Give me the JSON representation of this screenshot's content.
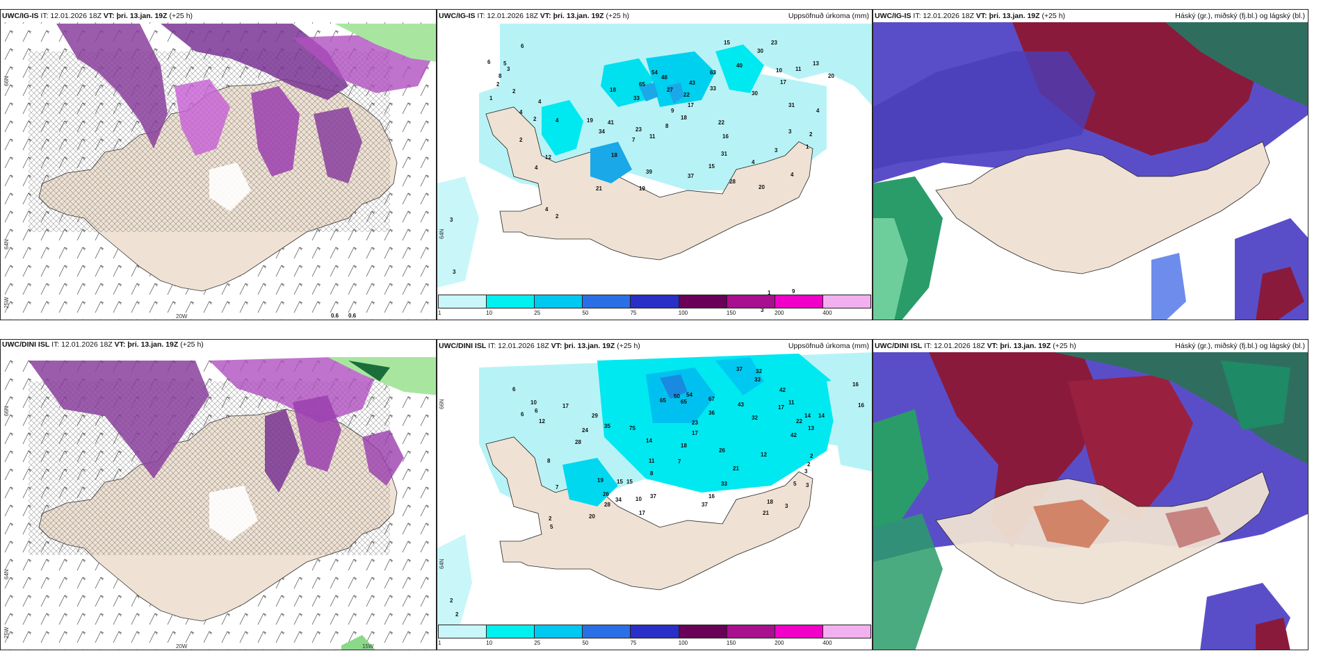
{
  "panels": {
    "p1": {
      "model": "UWC/IG-IS",
      "it": "IT: 12.01.2026 18Z",
      "vt_label": "VT:",
      "vt": "þri. 13.jan. 19Z",
      "lead": "(+25 h)",
      "title_right": "",
      "lat_labels": [
        "66N",
        "64N",
        "25W"
      ],
      "lon_labels": [
        "20W"
      ],
      "labels": [
        "0.6",
        "0.6"
      ]
    },
    "p2": {
      "model": "UWC/IG-IS",
      "it": "IT: 12.01.2026 18Z",
      "vt_label": "VT:",
      "vt": "þri. 13.jan. 19Z",
      "lead": "(+25 h)",
      "title_right": "Uppsöfnuð úrkoma (mm)",
      "edge_label": "64N",
      "values": [
        "3",
        "3",
        "2",
        "3",
        "1",
        "2",
        "6",
        "4",
        "2",
        "4",
        "2",
        "12",
        "4",
        "4",
        "2",
        "18",
        "33",
        "54",
        "48",
        "65",
        "27",
        "43",
        "63",
        "22",
        "33",
        "40",
        "30",
        "9",
        "23",
        "11",
        "17",
        "7",
        "8",
        "18",
        "41",
        "34",
        "19",
        "22",
        "16",
        "18",
        "31",
        "39",
        "37",
        "28",
        "20",
        "19",
        "21",
        "15",
        "3",
        "4",
        "3",
        "4",
        "9",
        "10",
        "11",
        "13",
        "20",
        "17",
        "31",
        "4",
        "2",
        "1",
        "6",
        "8",
        "5",
        "4",
        "3",
        "1",
        "15",
        "30",
        "23"
      ]
    },
    "p3": {
      "model": "UWC/IG-IS",
      "it": "IT: 12.01.2026 18Z",
      "vt_label": "VT:",
      "vt": "þri. 13.jan. 19Z",
      "lead": "(+25 h)",
      "title_right": "Háský (gr.), miðský (fj.bl.) og lágský (bl.)"
    },
    "p4": {
      "model": "UWC/DINI ISL",
      "it": "IT: 12.01.2026 18Z",
      "vt_label": "VT:",
      "vt": "þri. 13.jan. 19Z",
      "lead": "(+25 h)",
      "title_right": "",
      "lat_labels": [
        "66N",
        "64N",
        "25W"
      ],
      "lon_labels": [
        "20W",
        "15W"
      ]
    },
    "p5": {
      "model": "UWC/DINI ISL",
      "it": "IT: 12.01.2026 18Z",
      "vt_label": "VT:",
      "vt": "þri. 13.jan. 19Z",
      "lead": "(+25 h)",
      "title_right": "Uppsöfnuð úrkoma (mm)",
      "edge_labels": [
        "66N",
        "64N"
      ],
      "values": [
        "26",
        "37",
        "32",
        "33",
        "42",
        "17",
        "11",
        "16",
        "16",
        "14",
        "14",
        "22",
        "42",
        "13",
        "32",
        "43",
        "67",
        "36",
        "54",
        "50",
        "65",
        "65",
        "23",
        "17",
        "18",
        "26",
        "12",
        "21",
        "33",
        "16",
        "37",
        "21",
        "18",
        "3",
        "5",
        "3",
        "2",
        "2",
        "6",
        "6",
        "10",
        "17",
        "29",
        "35",
        "24",
        "75",
        "28",
        "14",
        "11",
        "8",
        "7",
        "19",
        "15",
        "15",
        "37",
        "26",
        "28",
        "34",
        "20",
        "10",
        "17",
        "5",
        "2",
        "2",
        "2",
        "8",
        "7",
        "5",
        "6",
        "12",
        "3"
      ]
    },
    "p6": {
      "model": "UWC/DINI ISL",
      "it": "IT: 12.01.2026 18Z",
      "vt_label": "VT:",
      "vt": "þri. 13.jan. 19Z",
      "lead": "(+25 h)",
      "title_right": "Háský (gr.), miðský (fj.bl.) og lágský (bl.)"
    }
  },
  "colorbar": {
    "ticks": [
      "1",
      "10",
      "25",
      "50",
      "75",
      "100",
      "150",
      "200",
      "400"
    ],
    "colors": [
      "#c9f6f9",
      "#00f0f0",
      "#00c8f0",
      "#2b6fe6",
      "#2a2fc8",
      "#6a0058",
      "#a8108f",
      "#f000c8",
      "#f3b0f0"
    ]
  },
  "colors": {
    "land": "#efe2d4",
    "precip_light": "#b7f3f6",
    "precip_mid": "#00e0ef",
    "precip_strong": "#1aa8e8",
    "high_cloud": "#2a9c6a",
    "mid_cloud": "#5a4ec8",
    "low_cloud": "#8a1a3c"
  }
}
